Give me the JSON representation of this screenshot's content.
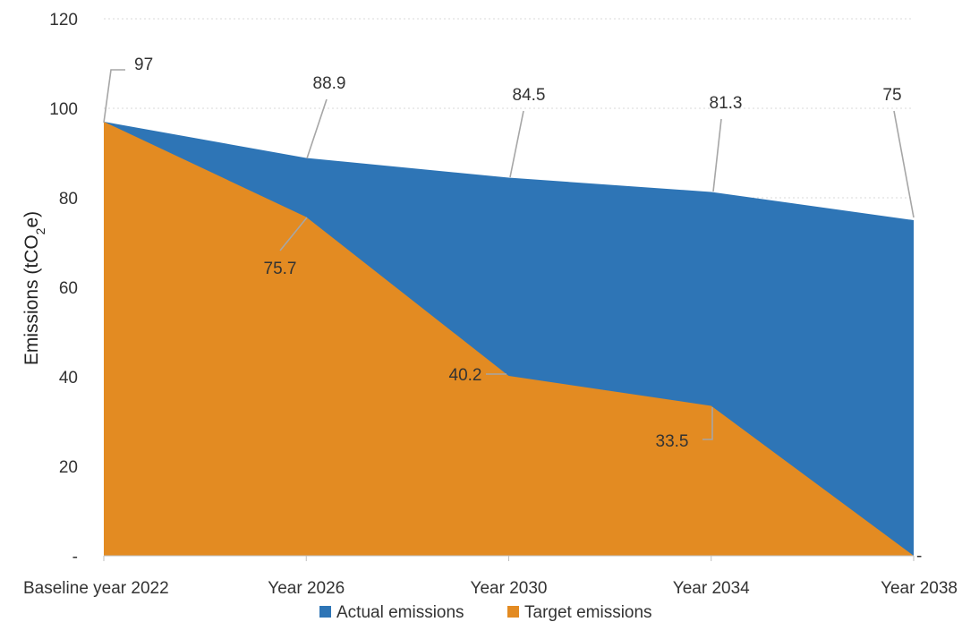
{
  "chart_data": {
    "type": "area",
    "categories": [
      "Baseline year 2022",
      "Year 2026",
      "Year 2030",
      "Year 2034",
      "Year 2038"
    ],
    "series": [
      {
        "name": "Actual emissions",
        "values": [
          97,
          88.9,
          84.5,
          81.3,
          75
        ],
        "data_labels": [
          "97",
          "88.9",
          "84.5",
          "81.3",
          "75"
        ],
        "color": "#2e75b6"
      },
      {
        "name": "Target emissions",
        "values": [
          97,
          75.7,
          40.2,
          33.5,
          0
        ],
        "data_labels": [
          "",
          "75.7",
          "40.2",
          "33.5",
          ""
        ],
        "color": "#e38b22"
      }
    ],
    "ylabel_main": "Emissions (tCO",
    "ylabel_sub": "2",
    "ylabel_end": "e)",
    "ylim": [
      0,
      120
    ],
    "y_ticks": [
      {
        "value": 0,
        "label": "-"
      },
      {
        "value": 20,
        "label": "20"
      },
      {
        "value": 40,
        "label": "40"
      },
      {
        "value": 60,
        "label": "60"
      },
      {
        "value": 80,
        "label": "80"
      },
      {
        "value": 100,
        "label": "100"
      },
      {
        "value": 120,
        "label": "120"
      }
    ],
    "right_axis_zero_label": "-",
    "grid": true,
    "legend_position": "bottom"
  }
}
